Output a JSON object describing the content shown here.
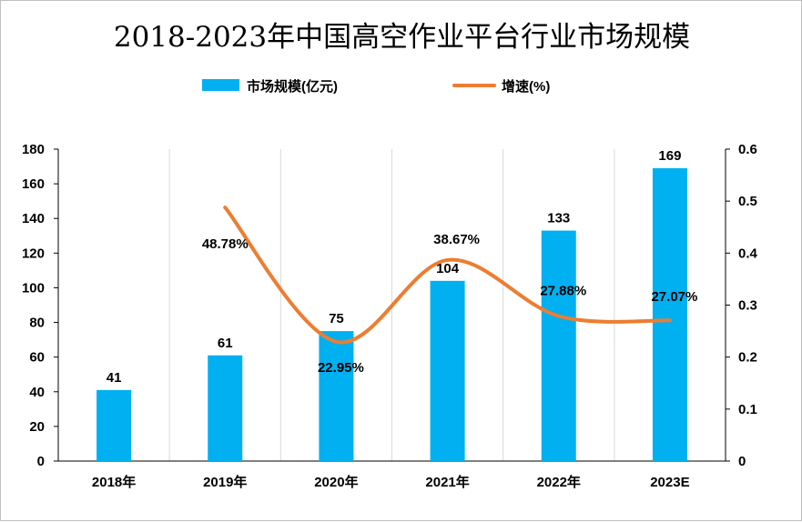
{
  "chart_data": {
    "type": "bar+line",
    "title": "2018-2023年中国高空作业平台行业市场规模",
    "categories": [
      "2018年",
      "2019年",
      "2020年",
      "2021年",
      "2022年",
      "2023E"
    ],
    "series": [
      {
        "name": "市场规模(亿元)",
        "type": "bar",
        "axis": "left",
        "color": "#00b0f0",
        "values": [
          41,
          61,
          75,
          104,
          133,
          169
        ],
        "labels": [
          "41",
          "61",
          "75",
          "104",
          "133",
          "169"
        ]
      },
      {
        "name": "增速(%)",
        "type": "line",
        "axis": "right",
        "color": "#ed7d31",
        "smooth": true,
        "values": [
          null,
          0.4878,
          0.2295,
          0.3867,
          0.2788,
          0.2707
        ],
        "labels": [
          "",
          "48.78%",
          "22.95%",
          "38.67%",
          "27.88%",
          "27.07%"
        ]
      }
    ],
    "y_left": {
      "range": [
        0,
        180
      ],
      "ticks": [
        "0",
        "20",
        "40",
        "60",
        "80",
        "100",
        "120",
        "140",
        "160",
        "180"
      ]
    },
    "y_right": {
      "range": [
        0,
        0.6
      ],
      "ticks": [
        "0",
        "0.1",
        "0.2",
        "0.3",
        "0.4",
        "0.5",
        "0.6"
      ]
    },
    "grid": "vertical",
    "legend": "top"
  }
}
